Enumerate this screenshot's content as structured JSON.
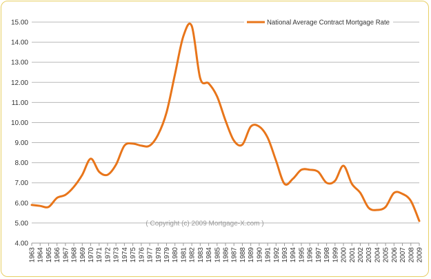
{
  "chart_data": {
    "type": "line",
    "title": "",
    "xlabel": "",
    "ylabel": "",
    "ylim": [
      4.0,
      15.0
    ],
    "y_ticks": [
      "4.00",
      "5.00",
      "6.00",
      "7.00",
      "8.00",
      "9.00",
      "10.00",
      "11.00",
      "12.00",
      "13.00",
      "14.00",
      "15.00"
    ],
    "x": [
      "1963",
      "1964",
      "1965",
      "1966",
      "1967",
      "1968",
      "1969",
      "1970",
      "1971",
      "1972",
      "1973",
      "1974",
      "1975",
      "1976",
      "1977",
      "1978",
      "1979",
      "1980",
      "1981",
      "1982",
      "1983",
      "1984",
      "1985",
      "1986",
      "1987",
      "1988",
      "1989",
      "1990",
      "1991",
      "1992",
      "1993",
      "1994",
      "1995",
      "1996",
      "1997",
      "1998",
      "1999",
      "2000",
      "2001",
      "2002",
      "2003",
      "2004",
      "2005",
      "2006",
      "2007",
      "2008",
      "2009"
    ],
    "series": [
      {
        "name": "National Average Contract Mortgage Rate",
        "color": "#e8751a",
        "values": [
          5.9,
          5.85,
          5.8,
          6.25,
          6.4,
          6.8,
          7.4,
          8.2,
          7.55,
          7.4,
          7.9,
          8.85,
          8.95,
          8.85,
          8.85,
          9.4,
          10.5,
          12.4,
          14.3,
          14.8,
          12.2,
          11.95,
          11.3,
          10.1,
          9.1,
          8.9,
          9.8,
          9.8,
          9.25,
          8.1,
          6.95,
          7.2,
          7.65,
          7.65,
          7.55,
          7.0,
          7.1,
          7.85,
          6.95,
          6.5,
          5.75,
          5.65,
          5.8,
          6.5,
          6.45,
          6.1,
          5.1
        ]
      }
    ],
    "grid": "horizontal",
    "legend": "top-right",
    "watermark": "( Copyright (c) 2009 Mortgage-X.com )"
  }
}
